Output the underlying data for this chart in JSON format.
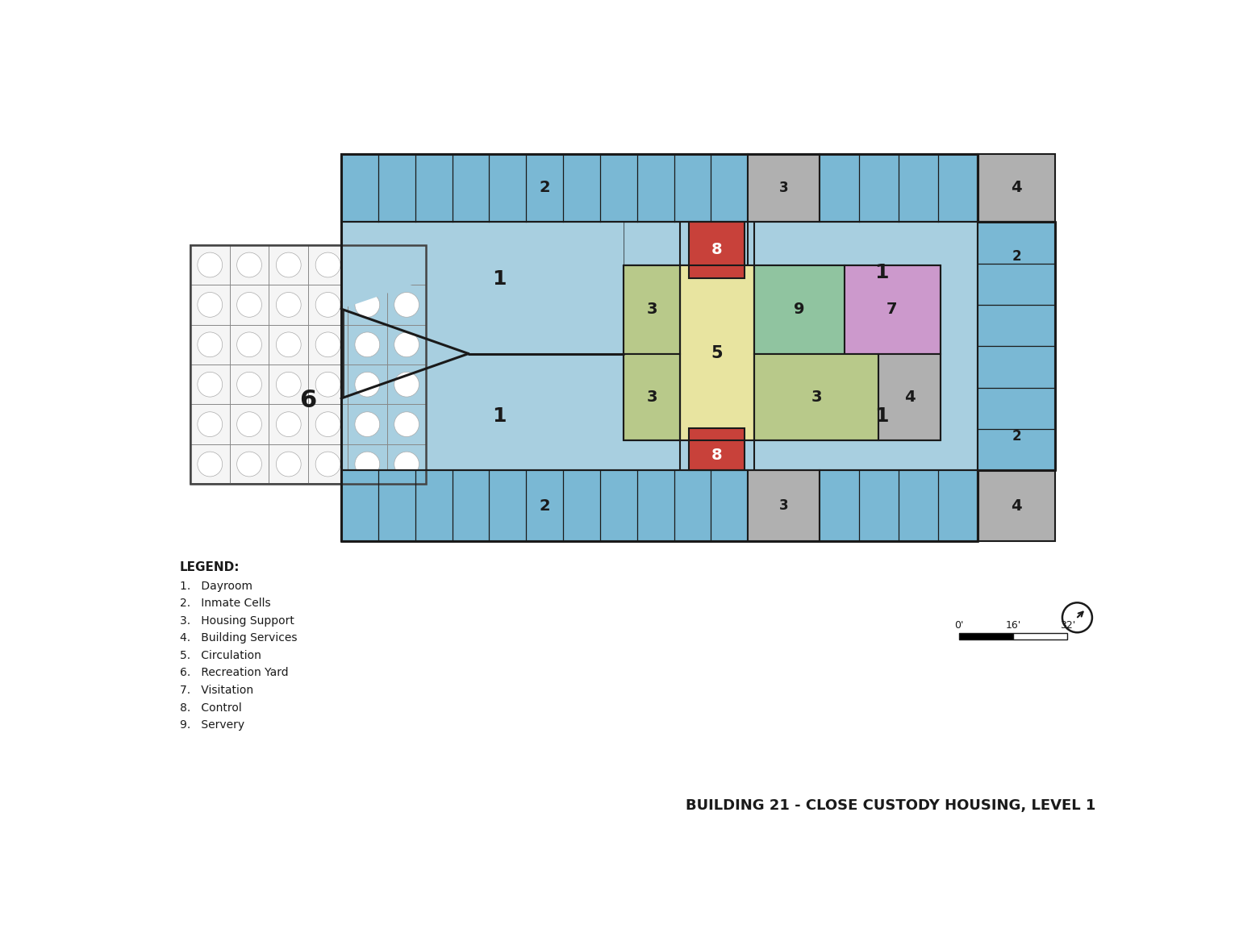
{
  "title": "BUILDING 21 - CLOSE CUSTODY HOUSING, LEVEL 1",
  "legend_title": "LEGEND:",
  "legend_items": [
    "1.   Dayroom",
    "2.   Inmate Cells",
    "3.   Housing Support",
    "4.   Building Services",
    "5.   Circulation",
    "6.   Recreation Yard",
    "7.   Visitation",
    "8.   Control",
    "9.   Servery"
  ],
  "bg_color": "#ffffff",
  "cell_color": "#7ab8d4",
  "dayroom_color": "#a8cfe0",
  "control_color": "#c8413a",
  "housing_support_color": "#b8c98a",
  "building_services_color": "#b0b0b0",
  "circulation_color": "#e8e4a0",
  "visitation_color": "#cc99cc",
  "servery_color": "#90c4a0",
  "wall_color": "#1a1a1a",
  "rec_yard_bg": "#f5f5f5"
}
